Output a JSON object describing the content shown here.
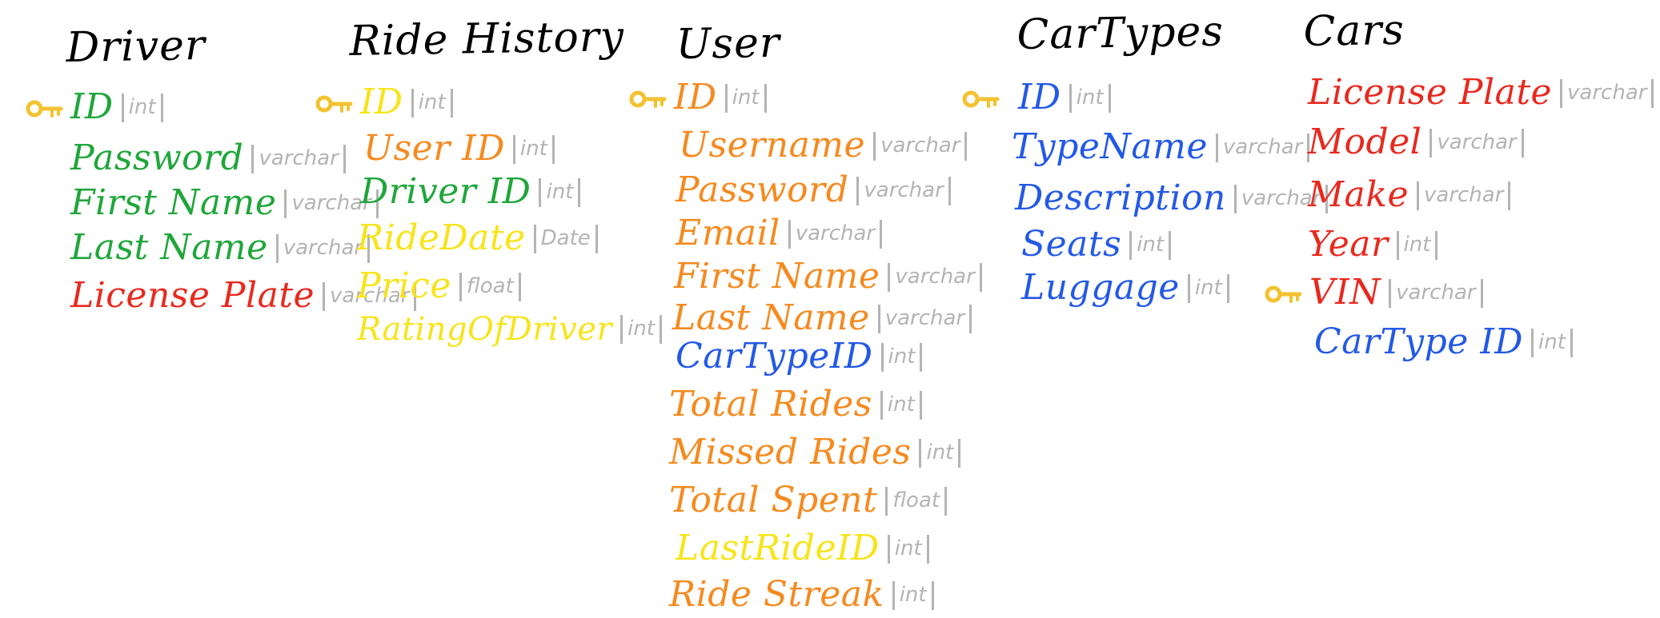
{
  "colors": {
    "title": "#000000",
    "key": "#f2c230",
    "type": "#b4b4b4",
    "green": "#1fa63a",
    "red": "#e8291f",
    "orange": "#f58a1f",
    "yellow": "#f7e41a",
    "blue": "#2359e6"
  },
  "tables": [
    {
      "title": "Driver",
      "fields": [
        {
          "name": "ID",
          "type": "int",
          "color": "#1fa63a",
          "key": true
        },
        {
          "name": "Password",
          "type": "varchar",
          "color": "#1fa63a",
          "key": false
        },
        {
          "name": "First Name",
          "type": "varchar",
          "color": "#1fa63a",
          "key": false
        },
        {
          "name": "Last Name",
          "type": "varchar",
          "color": "#1fa63a",
          "key": false
        },
        {
          "name": "License Plate",
          "type": "varchar",
          "color": "#e8291f",
          "key": false
        }
      ]
    },
    {
      "title": "Ride History",
      "fields": [
        {
          "name": "ID",
          "type": "int",
          "color": "#f7e41a",
          "key": true
        },
        {
          "name": "User ID",
          "type": "int",
          "color": "#f58a1f",
          "key": false
        },
        {
          "name": "Driver ID",
          "type": "int",
          "color": "#1fa63a",
          "key": false
        },
        {
          "name": "RideDate",
          "type": "Date",
          "color": "#f7e41a",
          "key": false
        },
        {
          "name": "Price",
          "type": "float",
          "color": "#f7e41a",
          "key": false
        },
        {
          "name": "RatingOfDriver",
          "type": "int",
          "color": "#f7e41a",
          "key": false
        }
      ]
    },
    {
      "title": "User",
      "fields": [
        {
          "name": "ID",
          "type": "int",
          "color": "#f58a1f",
          "key": true
        },
        {
          "name": "Username",
          "type": "varchar",
          "color": "#f58a1f",
          "key": false
        },
        {
          "name": "Password",
          "type": "varchar",
          "color": "#f58a1f",
          "key": false
        },
        {
          "name": "Email",
          "type": "varchar",
          "color": "#f58a1f",
          "key": false
        },
        {
          "name": "First Name",
          "type": "varchar",
          "color": "#f58a1f",
          "key": false
        },
        {
          "name": "Last Name",
          "type": "varchar",
          "color": "#f58a1f",
          "key": false
        },
        {
          "name": "CarTypeID",
          "type": "int",
          "color": "#2359e6",
          "key": false
        },
        {
          "name": "Total Rides",
          "type": "int",
          "color": "#f58a1f",
          "key": false
        },
        {
          "name": "Missed Rides",
          "type": "int",
          "color": "#f58a1f",
          "key": false
        },
        {
          "name": "Total Spent",
          "type": "float",
          "color": "#f58a1f",
          "key": false
        },
        {
          "name": "LastRideID",
          "type": "int",
          "color": "#f7e41a",
          "key": false
        },
        {
          "name": "Ride Streak",
          "type": "int",
          "color": "#f58a1f",
          "key": false
        }
      ]
    },
    {
      "title": "CarTypes",
      "fields": [
        {
          "name": "ID",
          "type": "int",
          "color": "#2359e6",
          "key": true
        },
        {
          "name": "TypeName",
          "type": "varchar",
          "color": "#2359e6",
          "key": false
        },
        {
          "name": "Description",
          "type": "varchar",
          "color": "#2359e6",
          "key": false
        },
        {
          "name": "Seats",
          "type": "int",
          "color": "#2359e6",
          "key": false
        },
        {
          "name": "Luggage",
          "type": "int",
          "color": "#2359e6",
          "key": false
        }
      ]
    },
    {
      "title": "Cars",
      "fields": [
        {
          "name": "License Plate",
          "type": "varchar",
          "color": "#e8291f",
          "key": false
        },
        {
          "name": "Model",
          "type": "varchar",
          "color": "#e8291f",
          "key": false
        },
        {
          "name": "Make",
          "type": "varchar",
          "color": "#e8291f",
          "key": false
        },
        {
          "name": "Year",
          "type": "int",
          "color": "#e8291f",
          "key": false
        },
        {
          "name": "VIN",
          "type": "varchar",
          "color": "#e8291f",
          "key": true
        },
        {
          "name": "CarType ID",
          "type": "int",
          "color": "#2359e6",
          "key": false
        }
      ]
    }
  ]
}
